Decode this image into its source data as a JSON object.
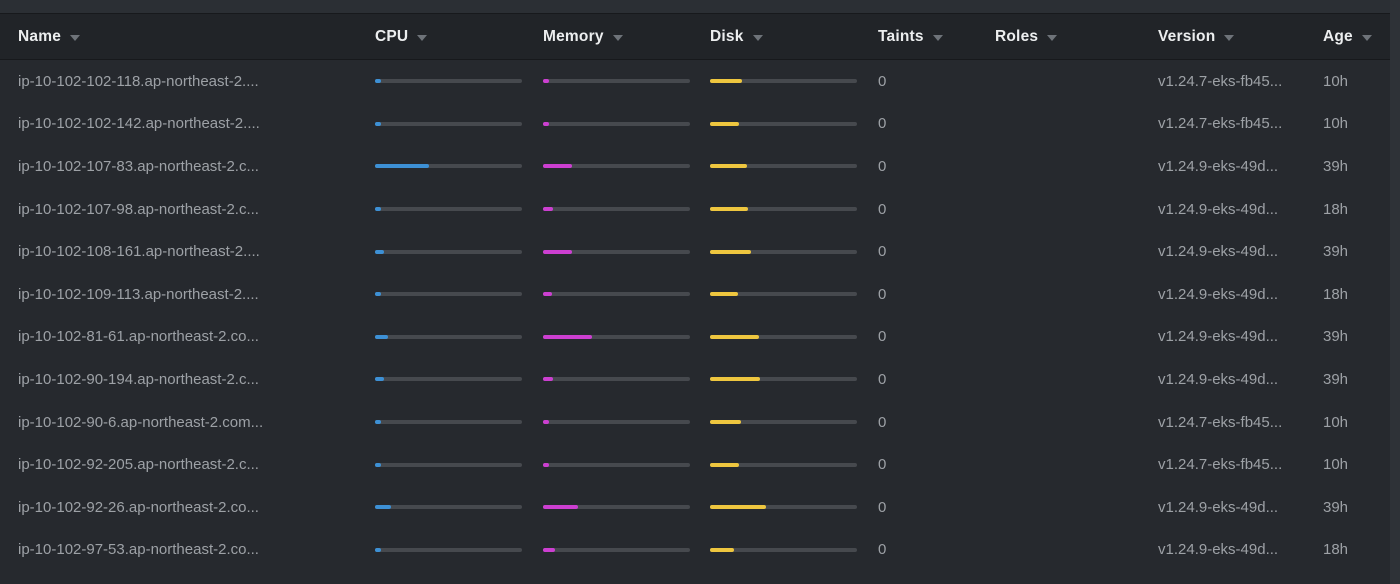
{
  "colors": {
    "cpu_bar": "#3d90d5",
    "memory_bar": "#cc3fd1",
    "disk_bar": "#eec63f",
    "bar_track": "#46494e"
  },
  "table": {
    "columns": [
      {
        "key": "name",
        "label": "Name"
      },
      {
        "key": "cpu",
        "label": "CPU"
      },
      {
        "key": "memory",
        "label": "Memory"
      },
      {
        "key": "disk",
        "label": "Disk"
      },
      {
        "key": "taints",
        "label": "Taints"
      },
      {
        "key": "roles",
        "label": "Roles"
      },
      {
        "key": "version",
        "label": "Version"
      },
      {
        "key": "age",
        "label": "Age"
      }
    ],
    "rows": [
      {
        "name": "ip-10-102-102-118.ap-northeast-2....",
        "cpu_pct": 3,
        "mem_pct": 3,
        "disk_pct": 22,
        "taints": "0",
        "roles": "",
        "version": "v1.24.7-eks-fb45...",
        "age": "10h"
      },
      {
        "name": "ip-10-102-102-142.ap-northeast-2....",
        "cpu_pct": 3,
        "mem_pct": 3,
        "disk_pct": 20,
        "taints": "0",
        "roles": "",
        "version": "v1.24.7-eks-fb45...",
        "age": "10h"
      },
      {
        "name": "ip-10-102-107-83.ap-northeast-2.c...",
        "cpu_pct": 37,
        "mem_pct": 20,
        "disk_pct": 25,
        "taints": "0",
        "roles": "",
        "version": "v1.24.9-eks-49d...",
        "age": "39h"
      },
      {
        "name": "ip-10-102-107-98.ap-northeast-2.c...",
        "cpu_pct": 3,
        "mem_pct": 7,
        "disk_pct": 26,
        "taints": "0",
        "roles": "",
        "version": "v1.24.9-eks-49d...",
        "age": "18h"
      },
      {
        "name": "ip-10-102-108-161.ap-northeast-2....",
        "cpu_pct": 6,
        "mem_pct": 20,
        "disk_pct": 28,
        "taints": "0",
        "roles": "",
        "version": "v1.24.9-eks-49d...",
        "age": "39h"
      },
      {
        "name": "ip-10-102-109-113.ap-northeast-2....",
        "cpu_pct": 3,
        "mem_pct": 6,
        "disk_pct": 19,
        "taints": "0",
        "roles": "",
        "version": "v1.24.9-eks-49d...",
        "age": "18h"
      },
      {
        "name": "ip-10-102-81-61.ap-northeast-2.co...",
        "cpu_pct": 9,
        "mem_pct": 33,
        "disk_pct": 33,
        "taints": "0",
        "roles": "",
        "version": "v1.24.9-eks-49d...",
        "age": "39h"
      },
      {
        "name": "ip-10-102-90-194.ap-northeast-2.c...",
        "cpu_pct": 6,
        "mem_pct": 7,
        "disk_pct": 34,
        "taints": "0",
        "roles": "",
        "version": "v1.24.9-eks-49d...",
        "age": "39h"
      },
      {
        "name": "ip-10-102-90-6.ap-northeast-2.com...",
        "cpu_pct": 3,
        "mem_pct": 3,
        "disk_pct": 21,
        "taints": "0",
        "roles": "",
        "version": "v1.24.7-eks-fb45...",
        "age": "10h"
      },
      {
        "name": "ip-10-102-92-205.ap-northeast-2.c...",
        "cpu_pct": 4,
        "mem_pct": 4,
        "disk_pct": 20,
        "taints": "0",
        "roles": "",
        "version": "v1.24.7-eks-fb45...",
        "age": "10h"
      },
      {
        "name": "ip-10-102-92-26.ap-northeast-2.co...",
        "cpu_pct": 11,
        "mem_pct": 24,
        "disk_pct": 38,
        "taints": "0",
        "roles": "",
        "version": "v1.24.9-eks-49d...",
        "age": "39h"
      },
      {
        "name": "ip-10-102-97-53.ap-northeast-2.co...",
        "cpu_pct": 3,
        "mem_pct": 8,
        "disk_pct": 16,
        "taints": "0",
        "roles": "",
        "version": "v1.24.9-eks-49d...",
        "age": "18h"
      }
    ]
  }
}
